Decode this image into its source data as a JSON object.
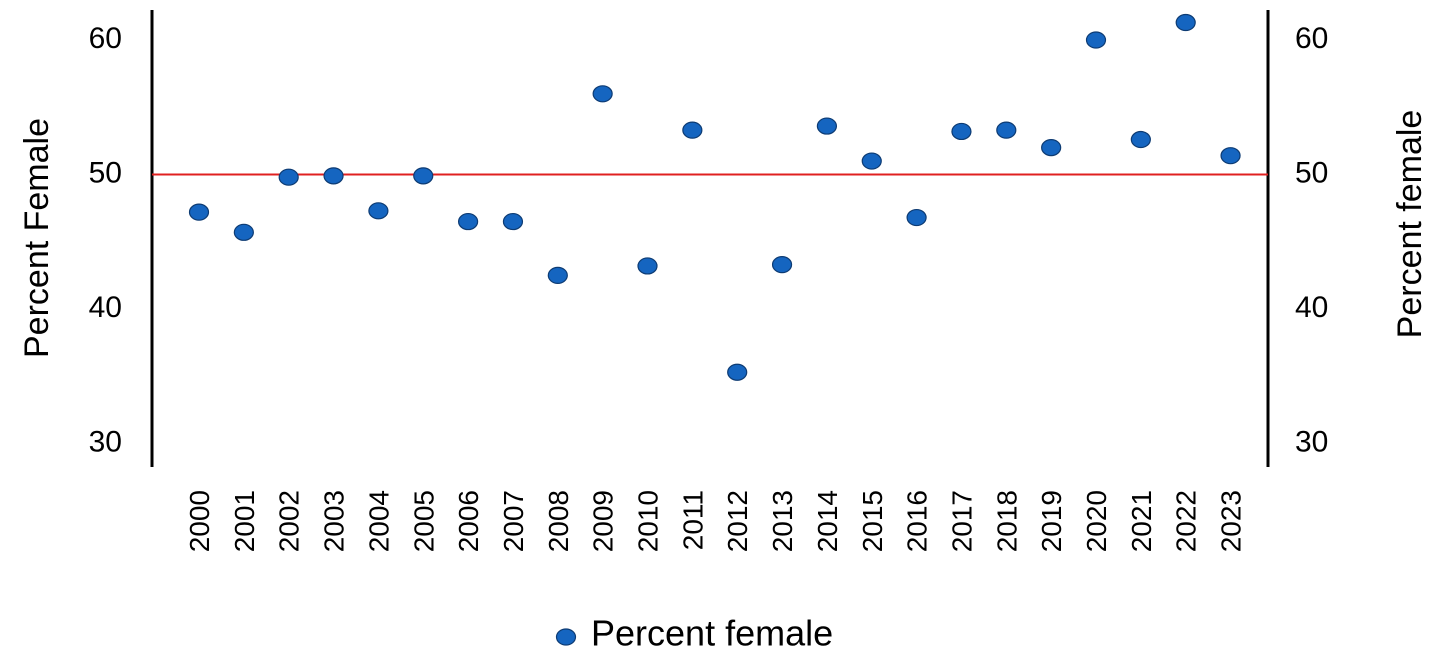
{
  "chart_data": {
    "type": "scatter",
    "title": "",
    "y_left_label": "Percent Female",
    "y_right_label": "Percent female",
    "ylim": [
      28,
      62
    ],
    "y_ticks": [
      30,
      40,
      50,
      60
    ],
    "y_tick_labels": [
      "30",
      "40",
      "50",
      "60"
    ],
    "grid": false,
    "reference_line": {
      "y": 50,
      "color": "#e02020"
    },
    "legend": {
      "placement": "bottom-center",
      "entries": [
        "Percent female"
      ]
    },
    "marker_color": "#1565c0",
    "marker_edge_color": "#0d3b73",
    "series": [
      {
        "name": "Percent female",
        "x": [
          "2000",
          "2001",
          "2002",
          "2003",
          "2004",
          "2005",
          "2006",
          "2007",
          "2008",
          "2009",
          "2010",
          "2011",
          "2012",
          "2013",
          "2014",
          "2015",
          "2016",
          "2017",
          "2018",
          "2019",
          "2020",
          "2021",
          "2022",
          "2023"
        ],
        "y": [
          47.2,
          45.7,
          49.8,
          49.9,
          47.3,
          49.9,
          46.5,
          46.5,
          42.5,
          56.0,
          43.2,
          53.3,
          35.3,
          43.3,
          53.6,
          51.0,
          46.8,
          53.2,
          53.3,
          52.0,
          60.0,
          52.6,
          61.3,
          51.4
        ]
      }
    ]
  }
}
